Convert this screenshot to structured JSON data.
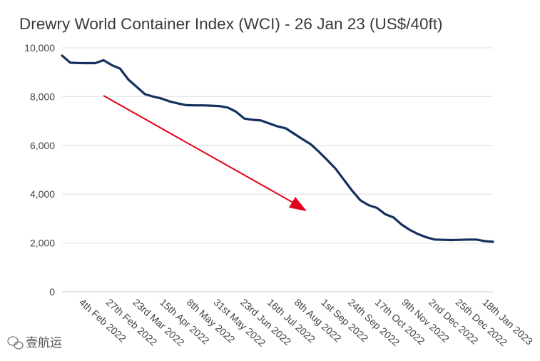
{
  "chart_data": {
    "type": "line",
    "title": "Drewry World Container Index (WCI) - 26 Jan 23 (US$/40ft)",
    "xlabel": "",
    "ylabel": "",
    "ylim": [
      0,
      10000
    ],
    "yticks": [
      0,
      2000,
      4000,
      6000,
      8000,
      10000
    ],
    "ytick_labels": [
      "0",
      "2,000",
      "4,000",
      "6,000",
      "8,000",
      "10,000"
    ],
    "grid": true,
    "xtick_labels": [
      "4th Feb 2022",
      "27th Feb 2022",
      "23rd Mar 2022",
      "15th Apr 2022",
      "8th May 2022",
      "31st May 2022",
      "23rd Jun 2022",
      "16th Jul 2022",
      "8th Aug 2022",
      "1st Sep 2022",
      "24th Sep 2022",
      "17th Oct 2022",
      "9th Nov 2022",
      "2nd Dec 2022",
      "25th Dec 2022",
      "18th Jan 2023"
    ],
    "series": [
      {
        "name": "WCI",
        "color": "#14305e",
        "values": [
          9680,
          9390,
          9375,
          9370,
          9370,
          9490,
          9290,
          9150,
          8700,
          8400,
          8100,
          8000,
          7920,
          7800,
          7720,
          7650,
          7640,
          7640,
          7630,
          7610,
          7550,
          7380,
          7100,
          7050,
          7020,
          6900,
          6780,
          6700,
          6480,
          6260,
          6050,
          5740,
          5400,
          5050,
          4600,
          4150,
          3750,
          3550,
          3440,
          3180,
          3050,
          2750,
          2530,
          2360,
          2230,
          2140,
          2130,
          2120,
          2130,
          2140,
          2140,
          2080,
          2050
        ]
      }
    ],
    "annotation": {
      "type": "arrow",
      "color": "#e3001b",
      "meaning": "downward trend"
    }
  },
  "watermark": {
    "text": "壹航运",
    "icon": "wechat-icon"
  }
}
